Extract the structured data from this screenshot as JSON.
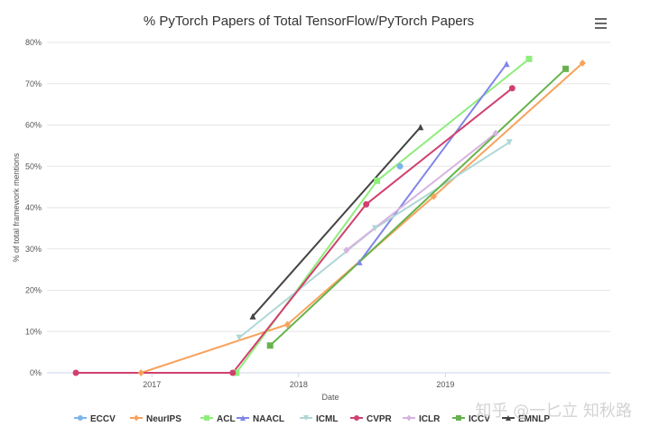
{
  "chart_data": {
    "type": "line",
    "title": "% PyTorch Papers of Total TensorFlow/PyTorch Papers",
    "xlabel": "Date",
    "ylabel": "% of total framework mentions",
    "xlim": [
      "2016-04-15",
      "2020-02-15"
    ],
    "ylim": [
      0,
      80
    ],
    "x_ticks": [
      "2017-01-01",
      "2018-01-01",
      "2019-01-01"
    ],
    "x_tick_labels": [
      "2017",
      "2018",
      "2019"
    ],
    "y_ticks": [
      0,
      10,
      20,
      30,
      40,
      50,
      60,
      70,
      80
    ],
    "y_tick_labels": [
      "0%",
      "10%",
      "20%",
      "30%",
      "40%",
      "50%",
      "60%",
      "70%",
      "80%"
    ],
    "grid": "horizontal",
    "legend_position": "bottom",
    "series": [
      {
        "name": "ECCV",
        "color": "#7cb5ec",
        "marker": "circle",
        "points": [
          {
            "x": "2018-09-10",
            "y": 50
          }
        ]
      },
      {
        "name": "NeurIPS",
        "color": "#f7a35c",
        "marker": "diamond",
        "points": [
          {
            "x": "2016-12-05",
            "y": 0
          },
          {
            "x": "2017-12-04",
            "y": 11.7
          },
          {
            "x": "2018-12-03",
            "y": 42.7
          },
          {
            "x": "2019-12-08",
            "y": 75
          }
        ]
      },
      {
        "name": "ACL",
        "color": "#90ed7d",
        "marker": "square",
        "points": [
          {
            "x": "2017-07-30",
            "y": 0
          },
          {
            "x": "2018-07-15",
            "y": 46.5
          },
          {
            "x": "2019-07-28",
            "y": 76
          }
        ]
      },
      {
        "name": "NAACL",
        "color": "#8085e9",
        "marker": "triangle",
        "points": [
          {
            "x": "2018-06-01",
            "y": 26.8
          },
          {
            "x": "2019-06-02",
            "y": 74.8
          }
        ]
      },
      {
        "name": "ICML",
        "color": "#b0d6d6",
        "marker": "triangle-down",
        "points": [
          {
            "x": "2017-08-06",
            "y": 8.5
          },
          {
            "x": "2018-07-10",
            "y": 35
          },
          {
            "x": "2019-06-09",
            "y": 55.8
          }
        ]
      },
      {
        "name": "CVPR",
        "color": "#d0406e",
        "marker": "circle",
        "points": [
          {
            "x": "2016-06-26",
            "y": 0
          },
          {
            "x": "2017-07-21",
            "y": 0
          },
          {
            "x": "2018-06-18",
            "y": 40.8
          },
          {
            "x": "2019-06-16",
            "y": 68.9
          }
        ]
      },
      {
        "name": "ICLR",
        "color": "#d7b3e1",
        "marker": "diamond",
        "points": [
          {
            "x": "2018-04-30",
            "y": 29.7
          },
          {
            "x": "2019-05-06",
            "y": 58
          }
        ]
      },
      {
        "name": "ICCV",
        "color": "#66b34d",
        "marker": "square",
        "points": [
          {
            "x": "2017-10-22",
            "y": 6.6
          },
          {
            "x": "2019-10-27",
            "y": 73.6
          }
        ]
      },
      {
        "name": "EMNLP",
        "color": "#444444",
        "marker": "triangle",
        "points": [
          {
            "x": "2017-09-09",
            "y": 13.7
          },
          {
            "x": "2018-10-31",
            "y": 59.5
          }
        ]
      }
    ]
  },
  "menu_icon": "hamburger-menu-icon",
  "watermark": "知乎 @一匕立 知秋路"
}
